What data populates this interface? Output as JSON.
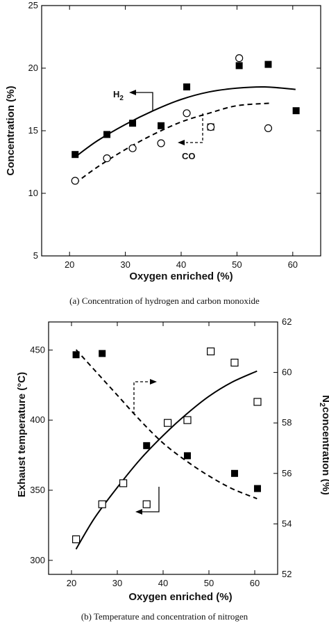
{
  "chart_data": [
    {
      "type": "scatter",
      "caption": "(a) Concentration of hydrogen and carbon monoxide",
      "xlabel": "Oxygen enriched (%)",
      "ylabel": "Concentration (%)",
      "xlim": [
        15,
        65
      ],
      "ylim": [
        5,
        25
      ],
      "xticks": [
        20,
        30,
        40,
        50,
        60
      ],
      "yticks": [
        5,
        10,
        15,
        20,
        25
      ],
      "grid": false,
      "annotations": [
        {
          "text": "H",
          "sub": "2",
          "points_to": "left"
        },
        {
          "text": "CO",
          "points_to": "left"
        }
      ],
      "series": [
        {
          "name": "H2",
          "marker": "filled-square",
          "x": [
            21,
            26.7,
            31.3,
            36.4,
            41,
            45.3,
            50.4,
            55.6,
            60.6
          ],
          "y": [
            13.1,
            14.7,
            15.6,
            15.4,
            18.5,
            15.3,
            20.2,
            20.3,
            16.6
          ]
        },
        {
          "name": "CO",
          "marker": "open-circle",
          "x": [
            21,
            26.7,
            31.3,
            36.4,
            41,
            45.3,
            50.4,
            55.6
          ],
          "y": [
            11,
            12.8,
            13.6,
            14,
            16.4,
            15.3,
            20.8,
            15.2
          ]
        }
      ],
      "fits": [
        {
          "series": "H2",
          "style": "solid",
          "x": [
            21,
            25,
            30,
            35,
            40,
            45,
            50,
            55,
            60.5
          ],
          "y": [
            12.9,
            14.2,
            15.5,
            16.6,
            17.5,
            18.1,
            18.4,
            18.5,
            18.3
          ]
        },
        {
          "series": "CO",
          "style": "dashed",
          "x": [
            21,
            25,
            30,
            35,
            40,
            45,
            50,
            56
          ],
          "y": [
            10.8,
            12.1,
            13.5,
            14.7,
            15.7,
            16.4,
            17,
            17.2
          ]
        }
      ]
    },
    {
      "type": "scatter",
      "caption": "(b) Temperature and concentration of nitrogen",
      "xlabel": "Oxygen enriched (%)",
      "ylabel": "Exhaust temperature (°C)",
      "y2label_main": "N",
      "y2label_sub": "2",
      "y2label_rest": "concentration (%)",
      "xlim": [
        15,
        65
      ],
      "ylim": [
        290,
        470
      ],
      "y2lim": [
        52,
        62
      ],
      "xticks": [
        20,
        30,
        40,
        50,
        60
      ],
      "yticks": [
        300,
        350,
        400,
        450
      ],
      "y2ticks": [
        52,
        54,
        56,
        58,
        60,
        62
      ],
      "grid": false,
      "series": [
        {
          "name": "Exhaust temperature",
          "axis": "left",
          "marker": "open-square",
          "x": [
            21,
            26.7,
            31.3,
            36.4,
            41,
            45.3,
            50.4,
            55.6,
            60.6
          ],
          "y": [
            315,
            340,
            355,
            340,
            398,
            400,
            449,
            441,
            413
          ]
        },
        {
          "name": "N2 concentration",
          "axis": "right",
          "marker": "filled-square",
          "x": [
            21,
            26.7,
            36.4,
            45.3,
            55.6,
            60.6
          ],
          "y": [
            60.7,
            60.75,
            57.1,
            56.7,
            56,
            55.4
          ]
        }
      ],
      "fits": [
        {
          "series": "Exhaust temperature",
          "axis": "left",
          "style": "solid",
          "x": [
            21,
            25,
            30,
            35,
            40,
            45,
            50,
            55,
            60.5
          ],
          "y": [
            308,
            330,
            352,
            372,
            389,
            404,
            417,
            427,
            435
          ]
        },
        {
          "series": "N2 concentration",
          "axis": "right",
          "style": "dashed",
          "x": [
            21,
            25,
            30,
            35,
            40,
            45,
            50,
            55,
            60.5
          ],
          "y": [
            60.9,
            60.1,
            59.1,
            58.1,
            57.2,
            56.5,
            55.9,
            55.4,
            55.0
          ]
        }
      ]
    }
  ]
}
